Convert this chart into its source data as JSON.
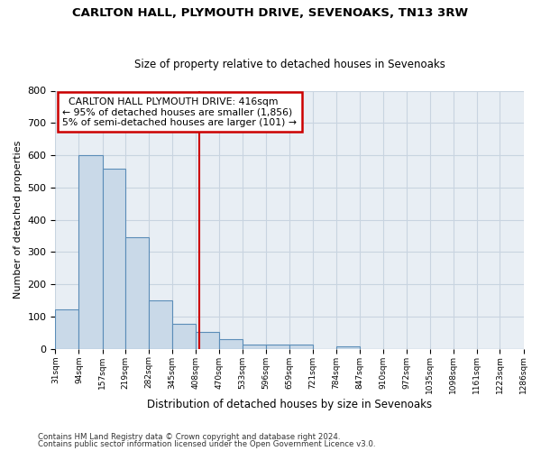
{
  "title1": "CARLTON HALL, PLYMOUTH DRIVE, SEVENOAKS, TN13 3RW",
  "title2": "Size of property relative to detached houses in Sevenoaks",
  "xlabel": "Distribution of detached houses by size in Sevenoaks",
  "ylabel": "Number of detached properties",
  "footer1": "Contains HM Land Registry data © Crown copyright and database right 2024.",
  "footer2": "Contains public sector information licensed under the Open Government Licence v3.0.",
  "annotation_line1": "  CARLTON HALL PLYMOUTH DRIVE: 416sqm",
  "annotation_line2": "← 95% of detached houses are smaller (1,856)",
  "annotation_line3": "5% of semi-detached houses are larger (101) →",
  "bar_edges": [
    31,
    94,
    157,
    219,
    282,
    345,
    408,
    470,
    533,
    596,
    659,
    721,
    784,
    847,
    910,
    972,
    1035,
    1098,
    1161,
    1223,
    1286
  ],
  "bar_heights": [
    122,
    601,
    558,
    347,
    150,
    77,
    52,
    31,
    14,
    12,
    12,
    0,
    7,
    0,
    0,
    0,
    0,
    0,
    0,
    0
  ],
  "bar_color": "#c9d9e8",
  "bar_edge_color": "#5b8db8",
  "property_size": 416,
  "vline_color": "#cc0000",
  "xlim_left": 31,
  "xlim_right": 1286,
  "ylim_top": 800,
  "yticks": [
    0,
    100,
    200,
    300,
    400,
    500,
    600,
    700,
    800
  ],
  "xtick_labels": [
    "31sqm",
    "94sqm",
    "157sqm",
    "219sqm",
    "282sqm",
    "345sqm",
    "408sqm",
    "470sqm",
    "533sqm",
    "596sqm",
    "659sqm",
    "721sqm",
    "784sqm",
    "847sqm",
    "910sqm",
    "972sqm",
    "1035sqm",
    "1098sqm",
    "1161sqm",
    "1223sqm",
    "1286sqm"
  ],
  "grid_color": "#c8d4e0",
  "annotation_box_color": "#cc0000",
  "bg_color": "#e8eef4"
}
